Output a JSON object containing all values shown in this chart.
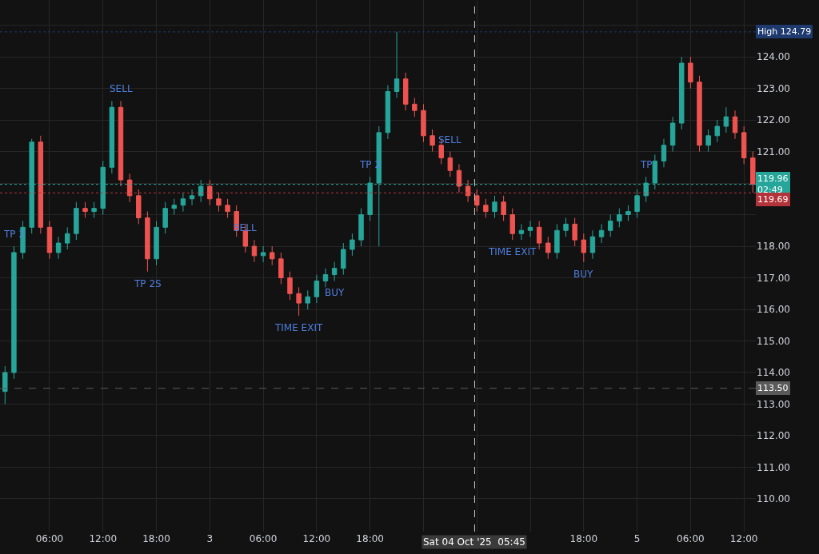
{
  "chart_data": {
    "type": "candlestick",
    "x": [
      "2025-10-02T01:00",
      "2025-10-02T02:00",
      "2025-10-02T03:00",
      "2025-10-02T04:00",
      "2025-10-02T05:00",
      "2025-10-02T06:00",
      "2025-10-02T07:00",
      "2025-10-02T08:00",
      "2025-10-02T09:00",
      "2025-10-02T10:00",
      "2025-10-02T11:00",
      "2025-10-02T12:00",
      "2025-10-02T13:00",
      "2025-10-02T14:00",
      "2025-10-02T15:00",
      "2025-10-02T16:00",
      "2025-10-02T17:00",
      "2025-10-02T18:00",
      "2025-10-02T19:00",
      "2025-10-02T20:00",
      "2025-10-02T21:00",
      "2025-10-02T22:00",
      "2025-10-02T23:00",
      "2025-10-03T00:00",
      "2025-10-03T01:00",
      "2025-10-03T02:00",
      "2025-10-03T03:00",
      "2025-10-03T04:00",
      "2025-10-03T05:00",
      "2025-10-03T06:00",
      "2025-10-03T07:00",
      "2025-10-03T08:00",
      "2025-10-03T09:00",
      "2025-10-03T10:00",
      "2025-10-03T11:00",
      "2025-10-03T12:00",
      "2025-10-03T13:00",
      "2025-10-03T14:00",
      "2025-10-03T15:00",
      "2025-10-03T16:00",
      "2025-10-03T17:00",
      "2025-10-03T18:00",
      "2025-10-03T19:00",
      "2025-10-03T20:00",
      "2025-10-03T21:00",
      "2025-10-03T22:00",
      "2025-10-03T23:00",
      "2025-10-04T00:00",
      "2025-10-04T01:00",
      "2025-10-04T02:00",
      "2025-10-04T03:00",
      "2025-10-04T04:00",
      "2025-10-04T05:00",
      "2025-10-04T06:00",
      "2025-10-04T07:00",
      "2025-10-04T08:00",
      "2025-10-04T09:00",
      "2025-10-04T10:00",
      "2025-10-04T11:00",
      "2025-10-04T12:00",
      "2025-10-04T13:00",
      "2025-10-04T14:00",
      "2025-10-04T15:00",
      "2025-10-04T16:00",
      "2025-10-04T17:00",
      "2025-10-04T18:00",
      "2025-10-04T19:00",
      "2025-10-04T20:00",
      "2025-10-04T21:00",
      "2025-10-04T22:00",
      "2025-10-04T23:00",
      "2025-10-05T00:00",
      "2025-10-05T01:00",
      "2025-10-05T02:00",
      "2025-10-05T03:00",
      "2025-10-05T04:00",
      "2025-10-05T05:00",
      "2025-10-05T06:00",
      "2025-10-05T07:00",
      "2025-10-05T08:00",
      "2025-10-05T09:00",
      "2025-10-05T10:00",
      "2025-10-05T11:00",
      "2025-10-05T12:00",
      "2025-10-05T13:00"
    ],
    "ohlc": [
      [
        113.4,
        114.2,
        113.0,
        114.0
      ],
      [
        114.0,
        118.0,
        113.8,
        117.8
      ],
      [
        117.8,
        118.8,
        117.6,
        118.6
      ],
      [
        118.6,
        121.4,
        118.4,
        121.3
      ],
      [
        121.3,
        121.5,
        118.4,
        118.6
      ],
      [
        118.6,
        118.8,
        117.6,
        117.8
      ],
      [
        117.8,
        118.3,
        117.6,
        118.1
      ],
      [
        118.1,
        118.6,
        117.9,
        118.4
      ],
      [
        118.4,
        119.4,
        118.2,
        119.2
      ],
      [
        119.2,
        119.4,
        118.9,
        119.1
      ],
      [
        119.1,
        119.4,
        118.9,
        119.2
      ],
      [
        119.2,
        120.7,
        119.0,
        120.5
      ],
      [
        120.5,
        122.6,
        120.3,
        122.4
      ],
      [
        122.4,
        122.6,
        119.9,
        120.1
      ],
      [
        120.1,
        120.3,
        119.4,
        119.6
      ],
      [
        119.6,
        119.8,
        118.7,
        118.9
      ],
      [
        118.9,
        119.1,
        117.2,
        117.6
      ],
      [
        117.6,
        118.8,
        117.4,
        118.6
      ],
      [
        118.6,
        119.4,
        118.4,
        119.2
      ],
      [
        119.2,
        119.5,
        119.0,
        119.3
      ],
      [
        119.3,
        119.7,
        119.1,
        119.5
      ],
      [
        119.5,
        119.8,
        119.3,
        119.6
      ],
      [
        119.6,
        120.1,
        119.4,
        119.9
      ],
      [
        119.9,
        120.1,
        119.3,
        119.5
      ],
      [
        119.5,
        119.7,
        119.1,
        119.3
      ],
      [
        119.3,
        119.5,
        118.9,
        119.1
      ],
      [
        119.1,
        119.3,
        118.3,
        118.5
      ],
      [
        118.5,
        118.7,
        117.8,
        118.0
      ],
      [
        118.0,
        118.2,
        117.5,
        117.7
      ],
      [
        117.7,
        118.0,
        117.5,
        117.8
      ],
      [
        117.8,
        118.0,
        117.4,
        117.6
      ],
      [
        117.6,
        117.8,
        116.8,
        117.0
      ],
      [
        117.0,
        117.2,
        116.3,
        116.5
      ],
      [
        116.5,
        116.7,
        115.8,
        116.2
      ],
      [
        116.2,
        116.6,
        116.0,
        116.4
      ],
      [
        116.4,
        117.1,
        116.2,
        116.9
      ],
      [
        116.9,
        117.3,
        116.7,
        117.1
      ],
      [
        117.1,
        117.5,
        116.9,
        117.3
      ],
      [
        117.3,
        118.1,
        117.1,
        117.9
      ],
      [
        117.9,
        118.4,
        117.7,
        118.2
      ],
      [
        118.2,
        119.2,
        118.0,
        119.0
      ],
      [
        119.0,
        120.2,
        118.8,
        120.0
      ],
      [
        120.0,
        121.8,
        118.0,
        121.6
      ],
      [
        121.6,
        123.1,
        121.4,
        122.9
      ],
      [
        122.9,
        124.79,
        122.7,
        123.3
      ],
      [
        123.3,
        123.5,
        122.3,
        122.5
      ],
      [
        122.5,
        122.7,
        122.1,
        122.3
      ],
      [
        122.3,
        122.5,
        121.3,
        121.5
      ],
      [
        121.5,
        121.7,
        121.0,
        121.2
      ],
      [
        121.2,
        121.4,
        120.6,
        120.8
      ],
      [
        120.8,
        121.0,
        120.2,
        120.4
      ],
      [
        120.4,
        120.6,
        119.7,
        119.9
      ],
      [
        119.9,
        120.1,
        119.4,
        119.6
      ],
      [
        119.6,
        119.8,
        119.1,
        119.3
      ],
      [
        119.3,
        119.5,
        118.9,
        119.1
      ],
      [
        119.1,
        119.6,
        118.9,
        119.4
      ],
      [
        119.4,
        119.6,
        118.8,
        119.0
      ],
      [
        119.0,
        119.2,
        118.2,
        118.4
      ],
      [
        118.4,
        118.7,
        118.2,
        118.5
      ],
      [
        118.5,
        118.8,
        118.3,
        118.6
      ],
      [
        118.6,
        118.8,
        117.9,
        118.1
      ],
      [
        118.1,
        118.3,
        117.6,
        117.8
      ],
      [
        117.8,
        118.7,
        117.6,
        118.5
      ],
      [
        118.5,
        118.9,
        118.3,
        118.7
      ],
      [
        118.7,
        118.9,
        118.0,
        118.2
      ],
      [
        118.2,
        118.4,
        117.5,
        117.8
      ],
      [
        117.8,
        118.5,
        117.6,
        118.3
      ],
      [
        118.3,
        118.7,
        118.1,
        118.5
      ],
      [
        118.5,
        119.0,
        118.3,
        118.8
      ],
      [
        118.8,
        119.2,
        118.6,
        119.0
      ],
      [
        119.0,
        119.3,
        118.8,
        119.1
      ],
      [
        119.1,
        119.8,
        118.9,
        119.6
      ],
      [
        119.6,
        120.2,
        119.4,
        120.0
      ],
      [
        120.0,
        120.9,
        119.8,
        120.7
      ],
      [
        120.7,
        121.4,
        120.5,
        121.2
      ],
      [
        121.2,
        122.1,
        121.0,
        121.9
      ],
      [
        121.9,
        124.0,
        121.7,
        123.8
      ],
      [
        123.8,
        124.0,
        123.0,
        123.2
      ],
      [
        123.2,
        123.4,
        121.0,
        121.2
      ],
      [
        121.2,
        121.7,
        121.0,
        121.5
      ],
      [
        121.5,
        122.0,
        121.3,
        121.8
      ],
      [
        121.8,
        122.4,
        121.6,
        122.1
      ],
      [
        122.1,
        122.3,
        121.4,
        121.6
      ],
      [
        121.6,
        121.8,
        120.6,
        120.8
      ],
      [
        120.8,
        121.0,
        119.7,
        119.96
      ]
    ],
    "xlim": [
      "2025-10-02T00:26",
      "2025-10-05T13:20"
    ],
    "xticks": [
      {
        "value": "2025-10-02T06:00",
        "label": "06:00"
      },
      {
        "value": "2025-10-02T12:00",
        "label": "12:00"
      },
      {
        "value": "2025-10-02T18:00",
        "label": "18:00"
      },
      {
        "value": "2025-10-03T00:00",
        "label": "3"
      },
      {
        "value": "2025-10-03T06:00",
        "label": "06:00"
      },
      {
        "value": "2025-10-03T12:00",
        "label": "12:00"
      },
      {
        "value": "2025-10-03T18:00",
        "label": "18:00"
      },
      {
        "value": "2025-10-04T00:00",
        "label": null
      },
      {
        "value": "2025-10-04T06:00",
        "label": null
      },
      {
        "value": "2025-10-04T12:00",
        "label": null
      },
      {
        "value": "2025-10-04T18:00",
        "label": "18:00"
      },
      {
        "value": "2025-10-05T00:00",
        "label": "5"
      },
      {
        "value": "2025-10-05T06:00",
        "label": "06:00"
      },
      {
        "value": "2025-10-05T12:00",
        "label": "12:00"
      }
    ],
    "ylim": [
      108.96,
      125.8
    ],
    "yticks": [
      {
        "value": 110,
        "label": "110.00"
      },
      {
        "value": 111,
        "label": "111.00"
      },
      {
        "value": 112,
        "label": "112.00"
      },
      {
        "value": 113,
        "label": "113.00"
      },
      {
        "value": 114,
        "label": "114.00"
      },
      {
        "value": 115,
        "label": "115.00"
      },
      {
        "value": 116,
        "label": "116.00"
      },
      {
        "value": 117,
        "label": "117.00"
      },
      {
        "value": 118,
        "label": "118.00"
      },
      {
        "value": 119,
        "label": null
      },
      {
        "value": 120,
        "label": null
      },
      {
        "value": 121,
        "label": "121.00"
      },
      {
        "value": 122,
        "label": "122.00"
      },
      {
        "value": 123,
        "label": "123.00"
      },
      {
        "value": 124,
        "label": "124.00"
      },
      {
        "value": 125,
        "label": null
      }
    ],
    "grid": true,
    "legend": false,
    "ref_lines": [
      {
        "axis": "y",
        "value": 124.79,
        "label": "High 124.79",
        "color": "#1e3a6e",
        "line_style": "dotted"
      },
      {
        "axis": "y",
        "value": 119.96,
        "label": "119.96\n02:49",
        "color": "#26a69a",
        "line_style": "dotted"
      },
      {
        "axis": "y",
        "value": 119.69,
        "label": "119.69",
        "color": "#b2343a",
        "line_style": "dotted"
      },
      {
        "axis": "y",
        "value": 113.5,
        "label": "113.50",
        "color": "#5a5a5a",
        "line_style": "dashed"
      },
      {
        "axis": "x",
        "value": "2025-10-04T05:45",
        "label": "Sat 04 Oct '25  05:45",
        "color": "#cccccc",
        "line_style": "dashed"
      }
    ],
    "annotations": [
      {
        "text": "SELL",
        "x": "2025-10-02T14:00",
        "y": 122.6
      },
      {
        "text": "SELL",
        "x": "2025-10-03T04:00",
        "y": 118.2
      },
      {
        "text": "SELL",
        "x": "2025-10-04T03:00",
        "y": 121.0
      },
      {
        "text": "BUY",
        "x": "2025-10-03T14:00",
        "y": 116.9
      },
      {
        "text": "BUY",
        "x": "2025-10-04T18:00",
        "y": 117.5
      },
      {
        "text": "TP 2",
        "x": "2025-10-02T02:00",
        "y": 118.0
      },
      {
        "text": "TP 2S",
        "x": "2025-10-02T17:00",
        "y": 117.2
      },
      {
        "text": "TP 2",
        "x": "2025-10-03T18:00",
        "y": 120.2
      },
      {
        "text": "TP",
        "x": "2025-10-05T01:00",
        "y": 120.2
      },
      {
        "text": "TIME EXIT",
        "x": "2025-10-03T10:00",
        "y": 115.8
      },
      {
        "text": "TIME EXIT",
        "x": "2025-10-04T10:00",
        "y": 118.2
      }
    ]
  }
}
